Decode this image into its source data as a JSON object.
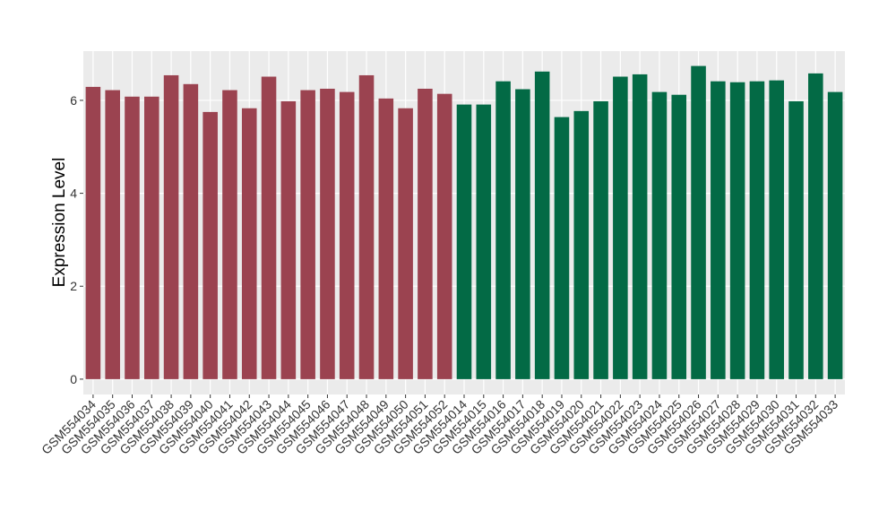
{
  "chart_data": {
    "type": "bar",
    "ylabel": "Expression Level",
    "categories": [
      "GSM554034",
      "GSM554035",
      "GSM554036",
      "GSM554037",
      "GSM554038",
      "GSM554039",
      "GSM554040",
      "GSM554041",
      "GSM554042",
      "GSM554043",
      "GSM554044",
      "GSM554045",
      "GSM554046",
      "GSM554047",
      "GSM554048",
      "GSM554049",
      "GSM554050",
      "GSM554051",
      "GSM554052",
      "GSM554014",
      "GSM554015",
      "GSM554016",
      "GSM554017",
      "GSM554018",
      "GSM554019",
      "GSM554020",
      "GSM554021",
      "GSM554022",
      "GSM554023",
      "GSM554024",
      "GSM554025",
      "GSM554026",
      "GSM554027",
      "GSM554028",
      "GSM554029",
      "GSM554030",
      "GSM554031",
      "GSM554032",
      "GSM554033"
    ],
    "values": [
      6.29,
      6.22,
      6.08,
      6.08,
      6.54,
      6.35,
      5.75,
      6.22,
      5.83,
      6.51,
      5.98,
      6.22,
      6.25,
      6.18,
      6.54,
      6.04,
      5.83,
      6.25,
      6.14,
      5.91,
      5.91,
      6.41,
      6.24,
      6.62,
      5.64,
      5.77,
      5.98,
      6.51,
      6.56,
      6.18,
      6.12,
      6.74,
      6.41,
      6.39,
      6.41,
      6.43,
      5.98,
      6.58,
      6.18
    ],
    "colors": [
      "#9b4350",
      "#9b4350",
      "#9b4350",
      "#9b4350",
      "#9b4350",
      "#9b4350",
      "#9b4350",
      "#9b4350",
      "#9b4350",
      "#9b4350",
      "#9b4350",
      "#9b4350",
      "#9b4350",
      "#9b4350",
      "#9b4350",
      "#9b4350",
      "#9b4350",
      "#9b4350",
      "#9b4350",
      "#036a45",
      "#036a45",
      "#036a45",
      "#036a45",
      "#036a45",
      "#036a45",
      "#036a45",
      "#036a45",
      "#036a45",
      "#036a45",
      "#036a45",
      "#036a45",
      "#036a45",
      "#036a45",
      "#036a45",
      "#036a45",
      "#036a45",
      "#036a45",
      "#036a45",
      "#036a45"
    ],
    "ylim": [
      -0.33,
      7.06
    ],
    "yticks": [
      0,
      2,
      4,
      6
    ],
    "grid": true
  }
}
